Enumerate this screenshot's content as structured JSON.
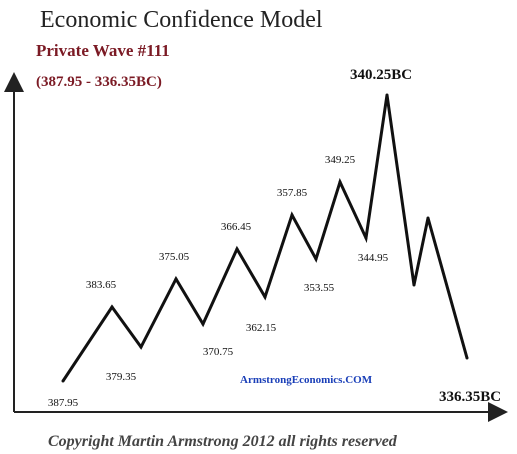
{
  "colors": {
    "subtitle": "#7b1a24",
    "watermark": "#1a3fb8",
    "line": "#111111"
  },
  "chart_data": {
    "type": "line",
    "title": "Economic Confidence Model",
    "subtitle": "Private Wave #111",
    "range_label": "(387.95 - 336.35BC)",
    "xlabel": "",
    "ylabel": "",
    "series": [
      {
        "points": [
          {
            "label": "387.95"
          },
          {
            "label": "383.65"
          },
          {
            "label": "379.35"
          },
          {
            "label": "375.05"
          },
          {
            "label": "370.75"
          },
          {
            "label": "366.45"
          },
          {
            "label": "362.15"
          },
          {
            "label": "357.85"
          },
          {
            "label": "353.55"
          },
          {
            "label": "349.25"
          },
          {
            "label": "344.95"
          },
          {
            "label": "340.25BC"
          },
          {
            "label": ""
          },
          {
            "label": ""
          },
          {
            "label": "336.35BC"
          }
        ]
      }
    ],
    "watermark": "ArmstrongEconomics.COM",
    "copyright": "Copyright Martin Armstrong 2012 all rights reserved"
  }
}
